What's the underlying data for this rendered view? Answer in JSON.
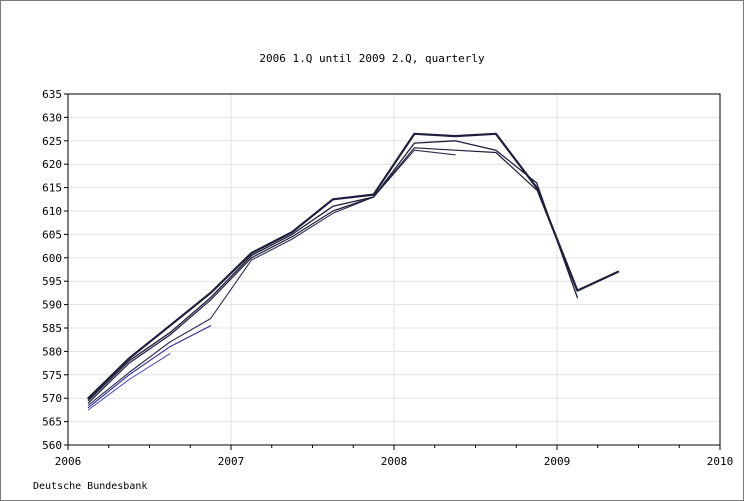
{
  "chart_data": {
    "type": "line",
    "title": "2006 1.Q until 2009 2.Q, quarterly",
    "source": "Deutsche Bundesbank",
    "xlabel": "",
    "ylabel": "",
    "xlim": [
      2006,
      2010
    ],
    "ylim": [
      560,
      635
    ],
    "xticks": [
      "2006",
      "2007",
      "2008",
      "2009",
      "2010"
    ],
    "yticks": [
      "560",
      "565",
      "570",
      "575",
      "580",
      "585",
      "590",
      "595",
      "600",
      "605",
      "610",
      "615",
      "620",
      "625",
      "630",
      "635"
    ],
    "grid": true,
    "legend": "none",
    "series": [
      {
        "color": "#1e1e3c",
        "x": [
          2006.125,
          2006.375,
          2006.625,
          2006.875,
          2007.125,
          2007.375,
          2007.625,
          2007.875,
          2008.125,
          2008.375,
          2008.625,
          2008.875,
          2009.125,
          2009.375
        ],
        "values": [
          570,
          578.5,
          585.5,
          592.5,
          601,
          605.5,
          612.5,
          613.5,
          626.5,
          626,
          626.5,
          615,
          593,
          597
        ]
      },
      {
        "color": "#1e1e3c",
        "x": [
          2006.125,
          2006.375,
          2006.625,
          2006.875,
          2007.125,
          2007.375,
          2007.625,
          2007.875,
          2008.125,
          2008.375,
          2008.625,
          2008.875,
          2009.125
        ],
        "values": [
          569.5,
          578,
          584,
          591.5,
          600.5,
          605,
          611,
          613,
          624.5,
          625,
          623,
          616,
          591.5
        ]
      },
      {
        "color": "#1e1e3c",
        "x": [
          2006.125,
          2006.375,
          2006.625,
          2006.875,
          2007.125,
          2007.375,
          2007.625,
          2007.875,
          2008.125,
          2008.375,
          2008.625,
          2008.875
        ],
        "values": [
          569,
          577.5,
          583.5,
          591,
          600,
          604.5,
          610,
          613,
          623.5,
          623,
          622.5,
          614.5
        ]
      },
      {
        "color": "#2e2e52",
        "x": [
          2006.125,
          2006.375,
          2006.625,
          2006.875,
          2007.125,
          2007.375,
          2007.625,
          2007.875,
          2008.125,
          2008.375
        ],
        "values": [
          568.5,
          575.5,
          582,
          587,
          599.5,
          604,
          609.5,
          613,
          623,
          622
        ]
      },
      {
        "color": "#2a2a9e",
        "x": [
          2006.125,
          2006.375,
          2006.625,
          2006.875
        ],
        "values": [
          568,
          575,
          581,
          585.5
        ]
      },
      {
        "color": "#4646c8",
        "x": [
          2006.125,
          2006.375,
          2006.625
        ],
        "values": [
          567.5,
          574,
          579.5
        ]
      }
    ]
  }
}
